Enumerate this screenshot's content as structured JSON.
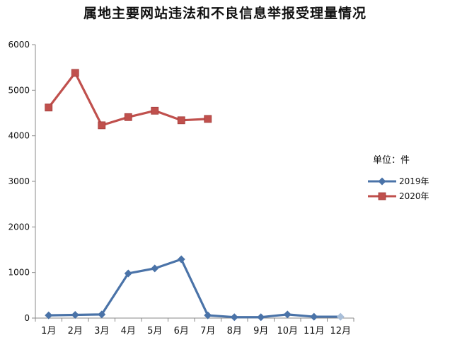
{
  "chart_data": {
    "type": "line",
    "title": "属地主要网站违法和不良信息举报受理量情况",
    "unit_label": "单位：件",
    "categories": [
      "1月",
      "2月",
      "3月",
      "4月",
      "5月",
      "6月",
      "7月",
      "8月",
      "9月",
      "10月",
      "11月",
      "12月"
    ],
    "ylim": [
      0,
      6000
    ],
    "yticks": [
      0,
      1000,
      2000,
      3000,
      4000,
      5000,
      6000
    ],
    "grid": false,
    "legend": "right",
    "series": [
      {
        "name": "2019年",
        "color": "#4a73a8",
        "marker": "diamond",
        "values": [
          60,
          70,
          80,
          980,
          1090,
          1290,
          60,
          20,
          20,
          80,
          30,
          30
        ]
      },
      {
        "name": "2020年",
        "color": "#c0504d",
        "marker": "square",
        "values": [
          4620,
          5380,
          4230,
          4410,
          4550,
          4340,
          4370,
          null,
          null,
          null,
          null,
          null
        ]
      }
    ]
  }
}
